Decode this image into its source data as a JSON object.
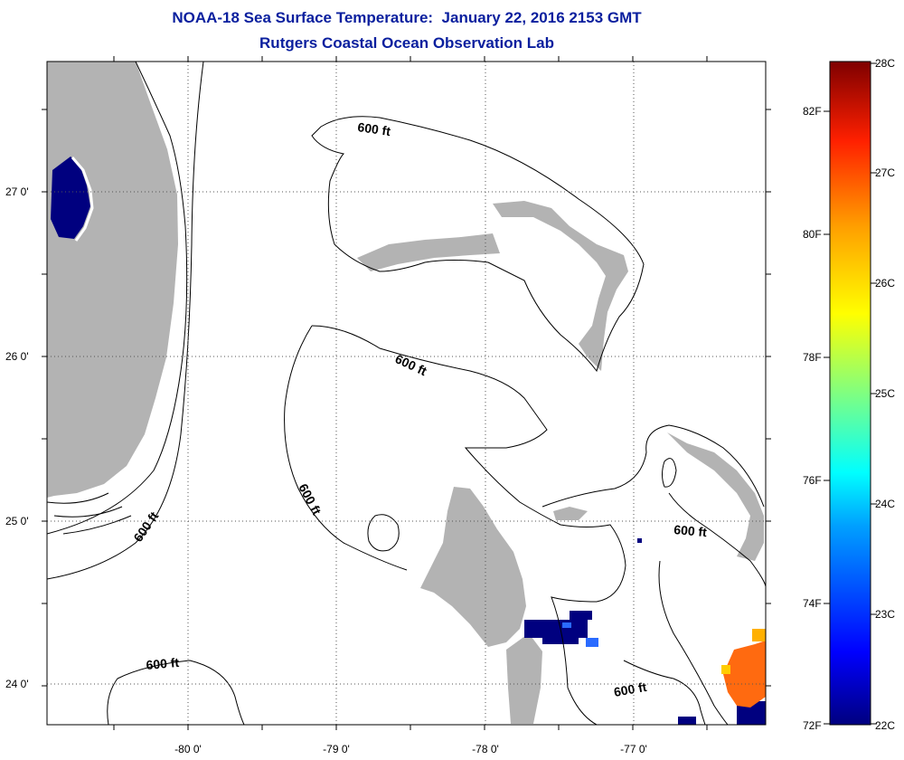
{
  "header": {
    "title_line1": "NOAA-18 Sea Surface Temperature:  January 22, 2016 2153 GMT",
    "title_line2": "Rutgers Coastal Ocean Observation Lab"
  },
  "map": {
    "x_ticks": [
      "-80 0'",
      "-79 0'",
      "-78 0'",
      "-77 0'"
    ],
    "y_ticks": [
      "27 0'",
      "26 0'",
      "25 0'",
      "24 0'"
    ],
    "contour_label": "600 ft",
    "colors": {
      "land": "#b3b3b3",
      "ocean": "#ffffff",
      "cold_water": "#00007f",
      "warm_water": "#ff6a10",
      "mid_water": "#2040ff",
      "contour": "#000000",
      "grid": "#555555"
    }
  },
  "colorbar": {
    "celsius": [
      "28C",
      "27C",
      "26C",
      "25C",
      "24C",
      "23C",
      "22C"
    ],
    "fahrenheit": [
      "82F",
      "80F",
      "78F",
      "76F",
      "74F",
      "72F"
    ],
    "c_range": [
      22,
      28
    ],
    "colormap": "jet"
  }
}
